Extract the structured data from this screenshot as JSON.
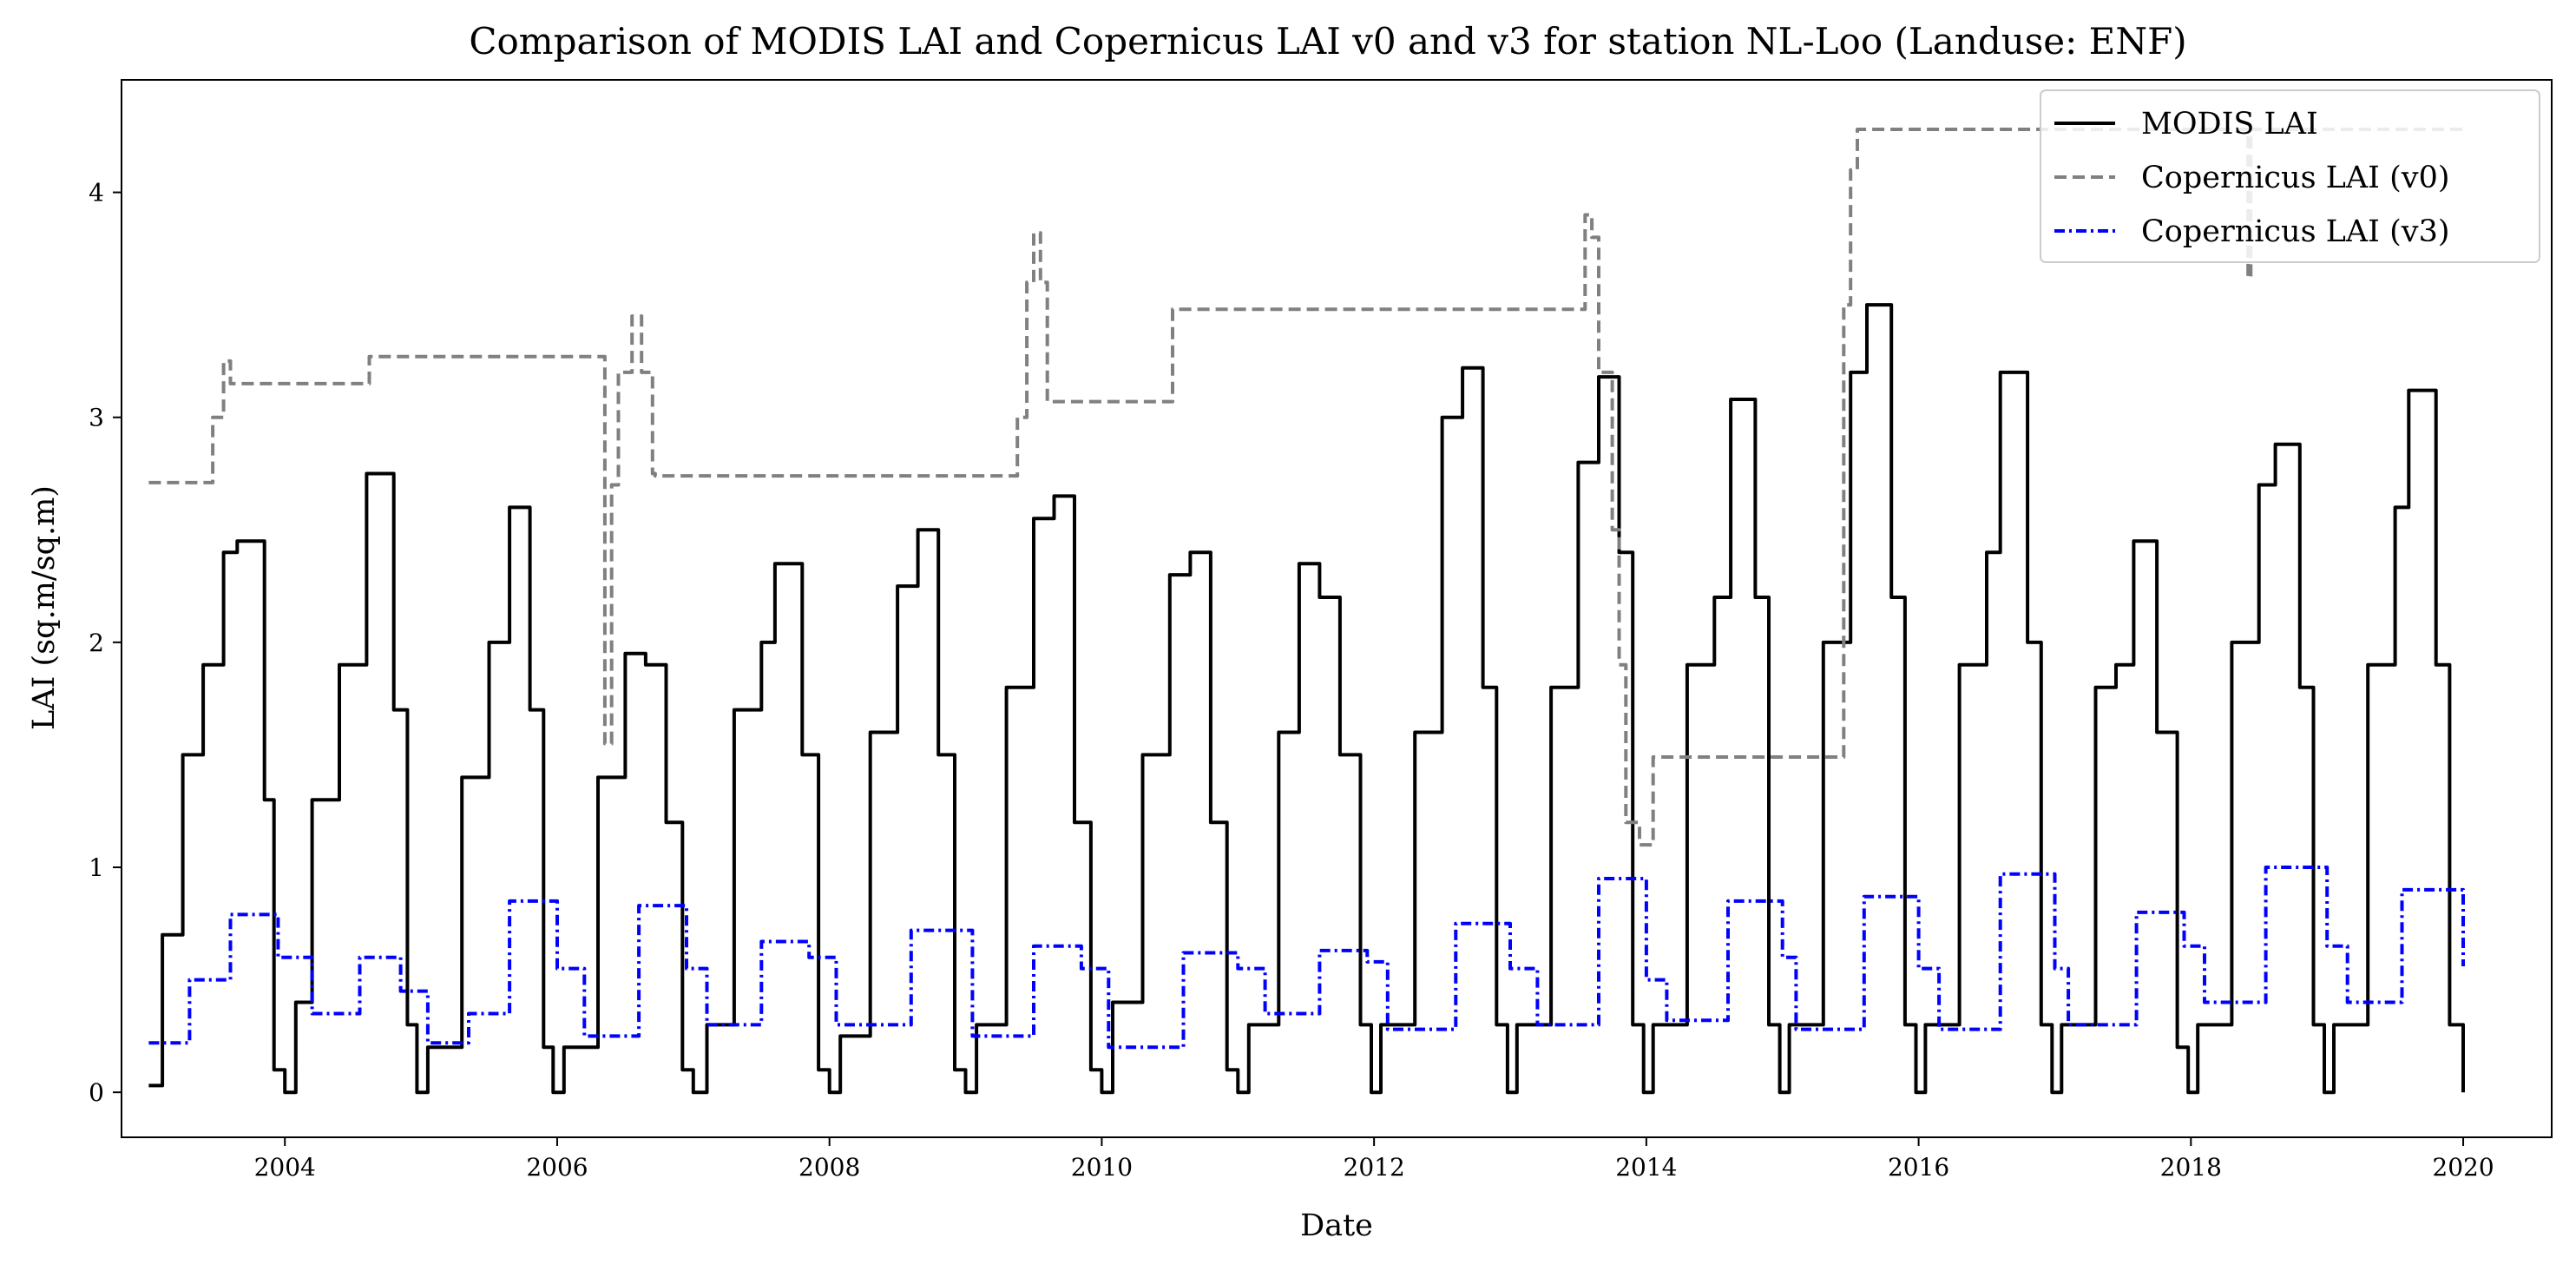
{
  "chart_data": {
    "type": "line",
    "title": "Comparison of MODIS LAI and Copernicus LAI v0 and v3 for station NL-Loo (Landuse: ENF)",
    "xlabel": "Date",
    "ylabel": "LAI (sq.m/sq.m)",
    "xlim": [
      2002.8,
      2020.65
    ],
    "ylim": [
      -0.2,
      4.5
    ],
    "x_ticks": [
      2004,
      2006,
      2008,
      2010,
      2012,
      2014,
      2016,
      2018,
      2020
    ],
    "x_tick_labels": [
      "2004",
      "2006",
      "2008",
      "2010",
      "2012",
      "2014",
      "2016",
      "2018",
      "2020"
    ],
    "y_ticks": [
      0,
      1,
      2,
      3,
      4
    ],
    "y_tick_labels": [
      "0",
      "1",
      "2",
      "3",
      "4"
    ],
    "grid": false,
    "legend_position": "top-right",
    "series": [
      {
        "name": "MODIS LAI",
        "color": "#000000",
        "style": "solid",
        "x": [
          2003.0,
          2003.1,
          2003.25,
          2003.4,
          2003.55,
          2003.65,
          2003.85,
          2003.92,
          2004.0,
          2004.08,
          2004.2,
          2004.4,
          2004.6,
          2004.8,
          2004.9,
          2004.97,
          2005.05,
          2005.3,
          2005.5,
          2005.65,
          2005.8,
          2005.9,
          2005.97,
          2006.05,
          2006.3,
          2006.5,
          2006.65,
          2006.8,
          2006.92,
          2007.0,
          2007.1,
          2007.3,
          2007.5,
          2007.6,
          2007.8,
          2007.92,
          2008.0,
          2008.08,
          2008.3,
          2008.5,
          2008.65,
          2008.8,
          2008.92,
          2009.0,
          2009.08,
          2009.3,
          2009.5,
          2009.65,
          2009.8,
          2009.92,
          2010.0,
          2010.08,
          2010.3,
          2010.5,
          2010.65,
          2010.8,
          2010.92,
          2011.0,
          2011.08,
          2011.3,
          2011.45,
          2011.6,
          2011.75,
          2011.9,
          2011.98,
          2012.05,
          2012.3,
          2012.5,
          2012.65,
          2012.8,
          2012.9,
          2012.98,
          2013.05,
          2013.3,
          2013.5,
          2013.65,
          2013.8,
          2013.9,
          2013.98,
          2014.05,
          2014.3,
          2014.5,
          2014.62,
          2014.8,
          2014.9,
          2014.98,
          2015.05,
          2015.3,
          2015.5,
          2015.62,
          2015.8,
          2015.9,
          2015.98,
          2016.05,
          2016.3,
          2016.5,
          2016.6,
          2016.8,
          2016.9,
          2016.98,
          2017.05,
          2017.3,
          2017.45,
          2017.58,
          2017.75,
          2017.9,
          2017.98,
          2018.05,
          2018.3,
          2018.5,
          2018.62,
          2018.8,
          2018.9,
          2018.98,
          2019.05,
          2019.3,
          2019.5,
          2019.6,
          2019.8,
          2019.9,
          2020.0
        ],
        "y": [
          0.03,
          0.7,
          1.5,
          1.9,
          2.4,
          2.45,
          1.3,
          0.1,
          0.0,
          0.4,
          1.3,
          1.9,
          2.75,
          1.7,
          0.3,
          0.0,
          0.2,
          1.4,
          2.0,
          2.6,
          1.7,
          0.2,
          0.0,
          0.2,
          1.4,
          1.95,
          1.9,
          1.2,
          0.1,
          0.0,
          0.3,
          1.7,
          2.0,
          2.35,
          1.5,
          0.1,
          0.0,
          0.25,
          1.6,
          2.25,
          2.5,
          1.5,
          0.1,
          0.0,
          0.3,
          1.8,
          2.55,
          2.65,
          1.2,
          0.1,
          0.0,
          0.4,
          1.5,
          2.3,
          2.4,
          1.2,
          0.1,
          0.0,
          0.3,
          1.6,
          2.35,
          2.2,
          1.5,
          0.3,
          0.0,
          0.3,
          1.6,
          3.0,
          3.22,
          1.8,
          0.3,
          0.0,
          0.3,
          1.8,
          2.8,
          3.18,
          2.4,
          0.3,
          0.0,
          0.3,
          1.9,
          2.2,
          3.08,
          2.2,
          0.3,
          0.0,
          0.3,
          2.0,
          3.2,
          3.5,
          2.2,
          0.3,
          0.0,
          0.3,
          1.9,
          2.4,
          3.2,
          2.0,
          0.3,
          0.0,
          0.3,
          1.8,
          1.9,
          2.45,
          1.6,
          0.2,
          0.0,
          0.3,
          2.0,
          2.7,
          2.88,
          1.8,
          0.3,
          0.0,
          0.3,
          1.9,
          2.6,
          3.12,
          1.9,
          0.3,
          0.0
        ]
      },
      {
        "name": "Copernicus LAI (v0)",
        "color": "#808080",
        "style": "dashed",
        "x": [
          2003.0,
          2003.45,
          2003.47,
          2003.55,
          2003.6,
          2004.6,
          2004.62,
          2006.3,
          2006.35,
          2006.4,
          2006.45,
          2006.55,
          2006.62,
          2006.7,
          2006.72,
          2009.35,
          2009.38,
          2009.45,
          2009.5,
          2009.55,
          2009.6,
          2009.65,
          2010.5,
          2010.52,
          2013.5,
          2013.55,
          2013.6,
          2013.65,
          2013.75,
          2013.8,
          2013.85,
          2013.95,
          2014.0,
          2014.05,
          2014.12,
          2014.15,
          2015.4,
          2015.45,
          2015.5,
          2015.55,
          2015.6,
          2018.4,
          2018.42,
          2018.44,
          2018.46,
          2020.0
        ],
        "y": [
          2.71,
          2.71,
          3.0,
          3.25,
          3.15,
          3.15,
          3.27,
          3.27,
          1.55,
          2.7,
          3.2,
          3.45,
          3.2,
          2.75,
          2.74,
          2.74,
          3.0,
          3.6,
          3.82,
          3.6,
          3.07,
          3.07,
          3.07,
          3.48,
          3.48,
          3.9,
          3.8,
          3.2,
          2.5,
          1.9,
          1.2,
          1.1,
          1.1,
          1.49,
          1.49,
          1.49,
          1.49,
          3.5,
          4.1,
          4.28,
          4.28,
          4.28,
          3.62,
          4.28,
          4.28,
          4.28
        ]
      },
      {
        "name": "Copernicus LAI (v3)",
        "color": "#0000ff",
        "style": "dashdot",
        "x": [
          2003.0,
          2003.3,
          2003.6,
          2003.95,
          2004.2,
          2004.55,
          2004.85,
          2005.05,
          2005.35,
          2005.65,
          2006.0,
          2006.2,
          2006.6,
          2006.95,
          2007.1,
          2007.5,
          2007.85,
          2008.05,
          2008.6,
          2009.05,
          2009.5,
          2009.85,
          2010.05,
          2010.6,
          2011.0,
          2011.2,
          2011.6,
          2011.95,
          2012.1,
          2012.6,
          2013.0,
          2013.2,
          2013.65,
          2014.0,
          2014.15,
          2014.6,
          2015.0,
          2015.1,
          2015.6,
          2016.0,
          2016.15,
          2016.6,
          2017.0,
          2017.1,
          2017.6,
          2017.95,
          2018.1,
          2018.55,
          2019.0,
          2019.15,
          2019.55,
          2020.0
        ],
        "y": [
          0.22,
          0.5,
          0.79,
          0.6,
          0.35,
          0.6,
          0.45,
          0.22,
          0.35,
          0.85,
          0.55,
          0.25,
          0.83,
          0.55,
          0.3,
          0.67,
          0.6,
          0.3,
          0.72,
          0.25,
          0.65,
          0.55,
          0.2,
          0.62,
          0.55,
          0.35,
          0.63,
          0.58,
          0.28,
          0.75,
          0.55,
          0.3,
          0.95,
          0.5,
          0.32,
          0.85,
          0.6,
          0.28,
          0.87,
          0.55,
          0.28,
          0.97,
          0.55,
          0.3,
          0.8,
          0.65,
          0.4,
          1.0,
          0.65,
          0.4,
          0.9,
          0.56
        ]
      }
    ]
  }
}
